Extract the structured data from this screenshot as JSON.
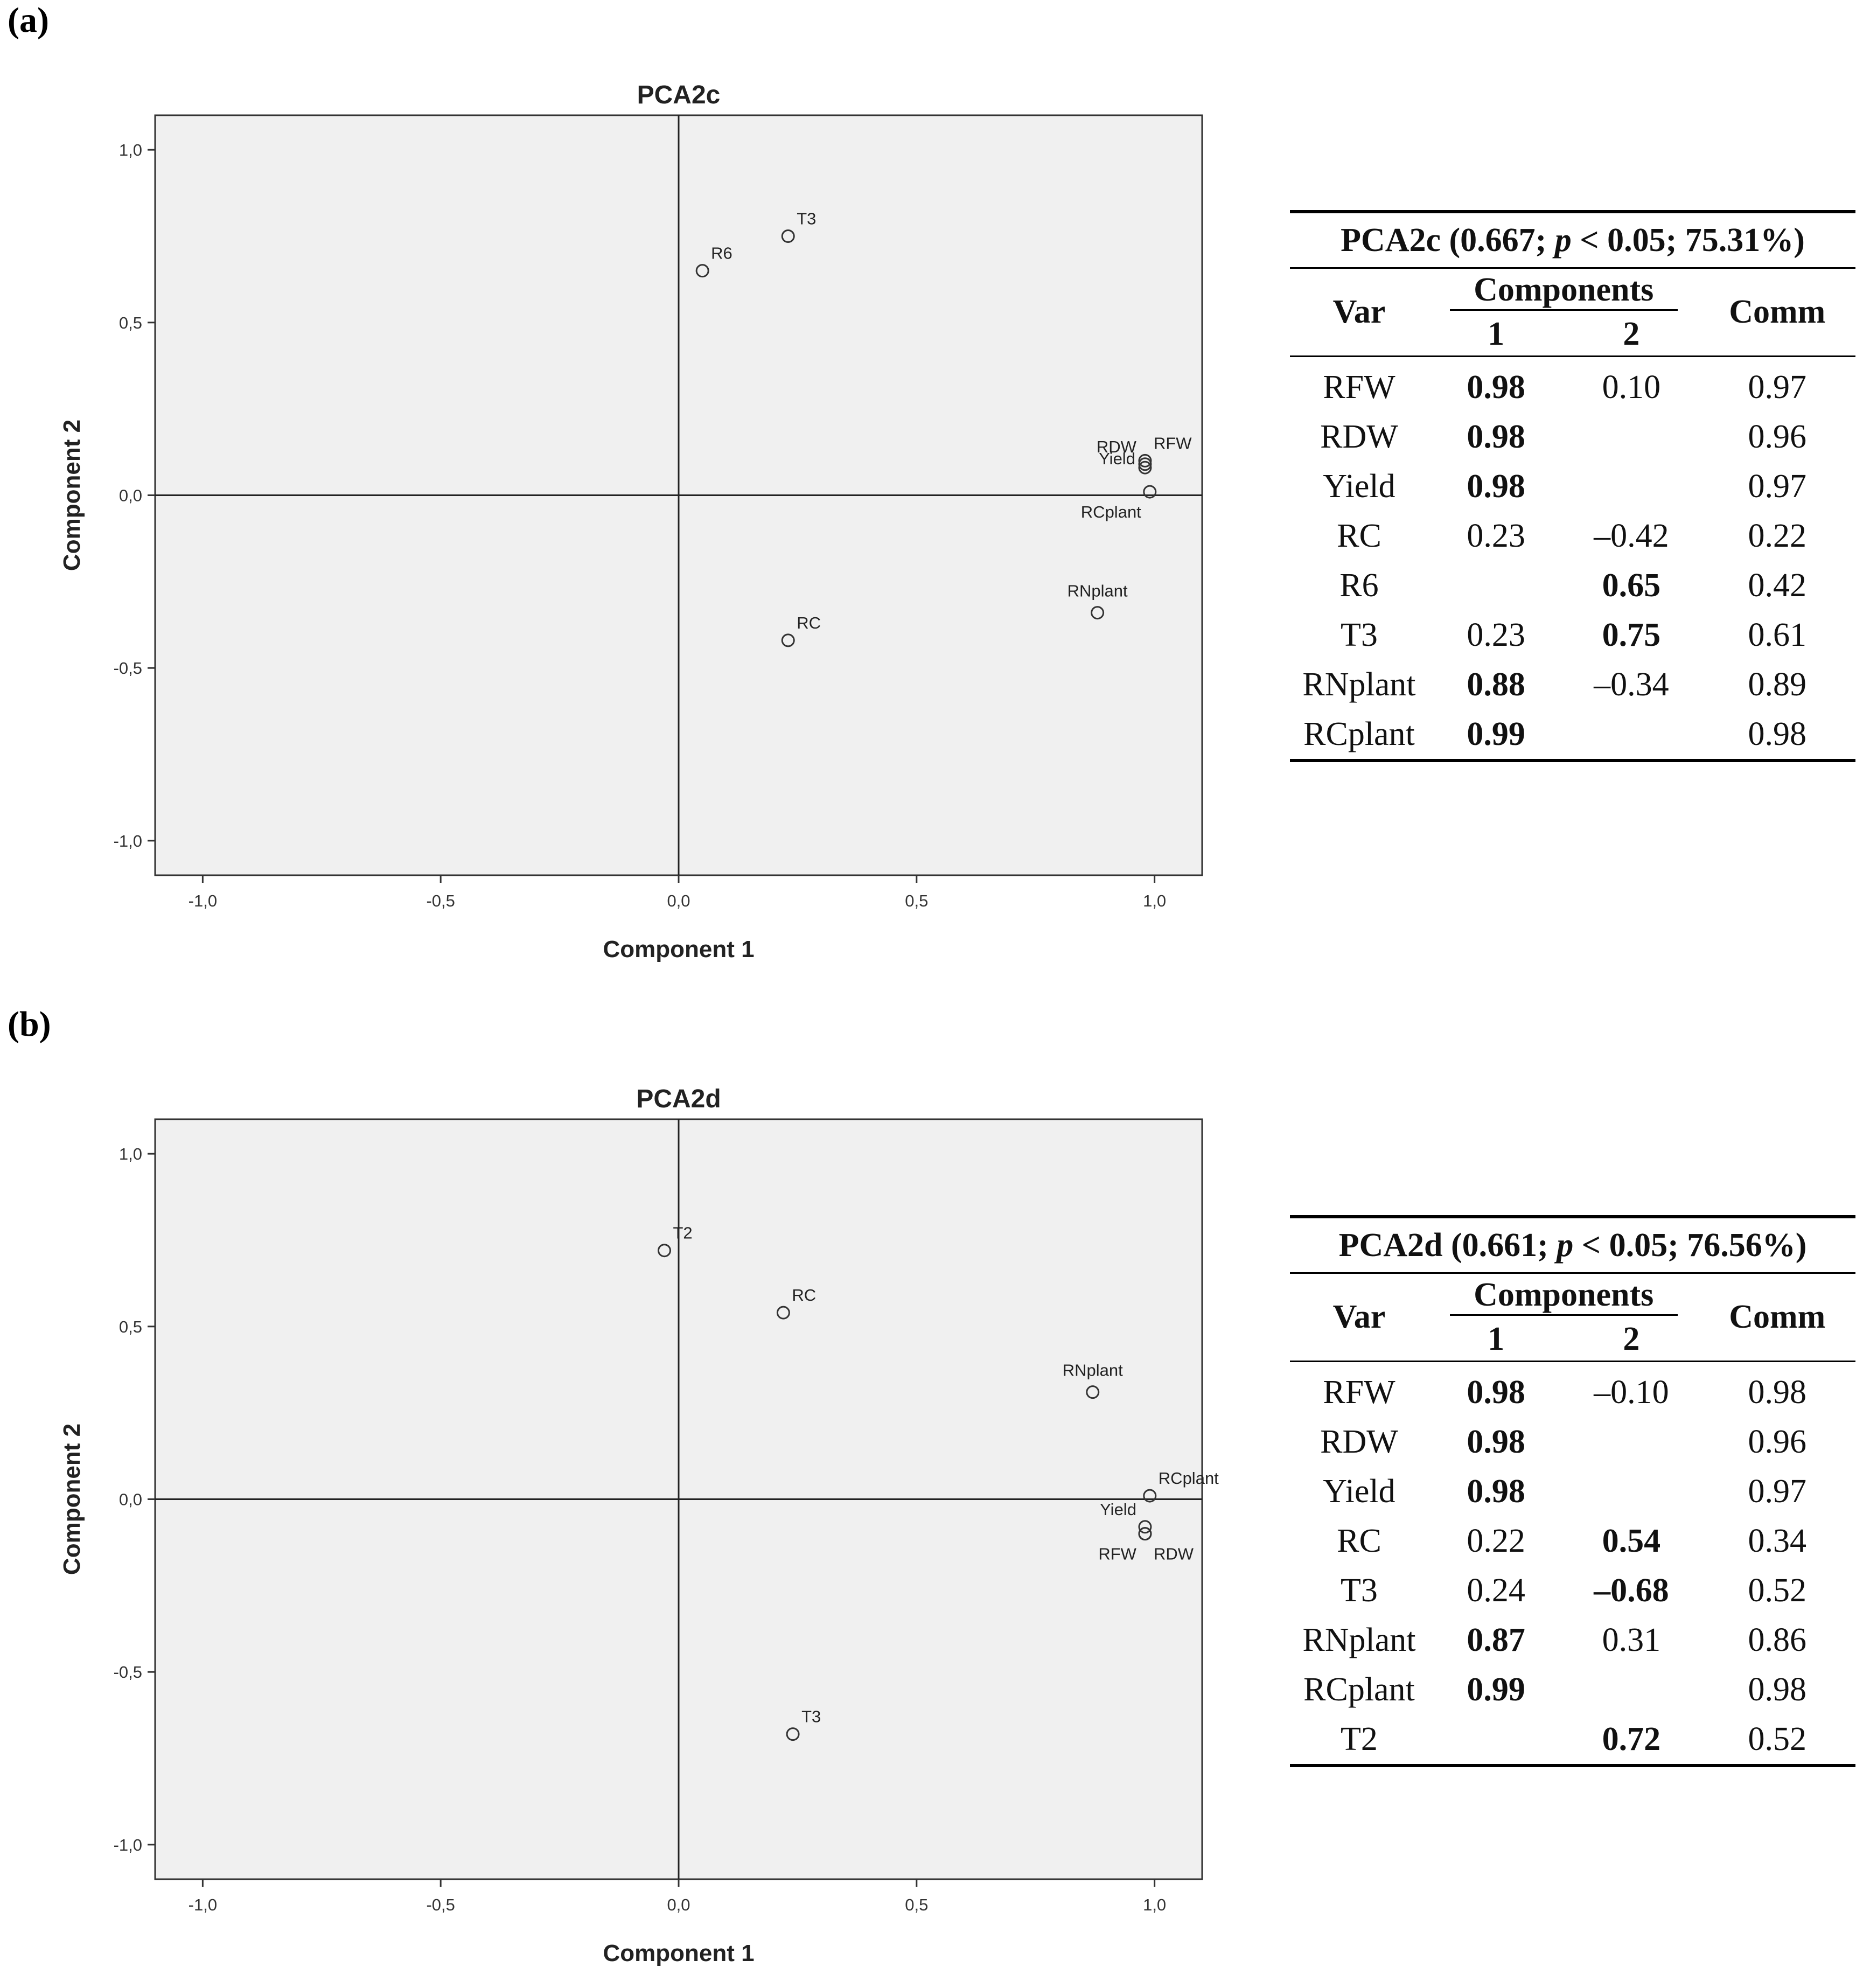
{
  "chart_data": [
    {
      "type": "scatter",
      "panel_label": "(a)",
      "title": "PCA2c",
      "xlabel": "Component 1",
      "ylabel": "Component 2",
      "xlim": [
        -1.1,
        1.1
      ],
      "ylim": [
        -1.1,
        1.1
      ],
      "xticks": [
        -1.0,
        -0.5,
        0.0,
        0.5,
        1.0
      ],
      "xtick_labels": [
        "-1,0",
        "-0,5",
        "0,0",
        "0,5",
        "1,0"
      ],
      "yticks": [
        1.0,
        0.5,
        0.0,
        -0.5,
        -1.0
      ],
      "ytick_labels": [
        "1,0",
        "0,5",
        "0,0",
        "-0,5",
        "-1,0"
      ],
      "points": [
        {
          "label": "T3",
          "x": 0.23,
          "y": 0.75,
          "lpos": "ne"
        },
        {
          "label": "R6",
          "x": 0.05,
          "y": 0.65,
          "lpos": "ne"
        },
        {
          "label": "RDW",
          "x": 0.98,
          "y": 0.09,
          "lpos": "nw"
        },
        {
          "label": "RFW",
          "x": 0.98,
          "y": 0.1,
          "lpos": "ne"
        },
        {
          "label": "Yield",
          "x": 0.98,
          "y": 0.08,
          "lpos": "w"
        },
        {
          "label": "RCplant",
          "x": 0.99,
          "y": 0.01,
          "lpos": "sw"
        },
        {
          "label": "RNplant",
          "x": 0.88,
          "y": -0.34,
          "lpos": "n"
        },
        {
          "label": "RC",
          "x": 0.23,
          "y": -0.42,
          "lpos": "ne"
        }
      ],
      "table": {
        "caption_pre": "PCA2c (0.667; ",
        "caption_p": "p",
        "caption_post": " < 0.05; 75.31%)",
        "var_header": "Var",
        "components_header": "Components",
        "comp1": "1",
        "comp2": "2",
        "comm_header": "Comm",
        "rows": [
          {
            "var": "RFW",
            "c1": "0.98",
            "c1b": true,
            "c2": "0.10",
            "c2b": false,
            "comm": "0.97"
          },
          {
            "var": "RDW",
            "c1": "0.98",
            "c1b": true,
            "c2": "",
            "c2b": false,
            "comm": "0.96"
          },
          {
            "var": "Yield",
            "c1": "0.98",
            "c1b": true,
            "c2": "",
            "c2b": false,
            "comm": "0.97"
          },
          {
            "var": "RC",
            "c1": "0.23",
            "c1b": false,
            "c2": "–0.42",
            "c2b": false,
            "comm": "0.22"
          },
          {
            "var": "R6",
            "c1": "",
            "c1b": false,
            "c2": "0.65",
            "c2b": true,
            "comm": "0.42"
          },
          {
            "var": "T3",
            "c1": "0.23",
            "c1b": false,
            "c2": "0.75",
            "c2b": true,
            "comm": "0.61"
          },
          {
            "var": "RNplant",
            "c1": "0.88",
            "c1b": true,
            "c2": "–0.34",
            "c2b": false,
            "comm": "0.89"
          },
          {
            "var": "RCplant",
            "c1": "0.99",
            "c1b": true,
            "c2": "",
            "c2b": false,
            "comm": "0.98"
          }
        ]
      }
    },
    {
      "type": "scatter",
      "panel_label": "(b)",
      "title": "PCA2d",
      "xlabel": "Component 1",
      "ylabel": "Component 2",
      "xlim": [
        -1.1,
        1.1
      ],
      "ylim": [
        -1.1,
        1.1
      ],
      "xticks": [
        -1.0,
        -0.5,
        0.0,
        0.5,
        1.0
      ],
      "xtick_labels": [
        "-1,0",
        "-0,5",
        "0,0",
        "0,5",
        "1,0"
      ],
      "yticks": [
        1.0,
        0.5,
        0.0,
        -0.5,
        -1.0
      ],
      "ytick_labels": [
        "1,0",
        "0,5",
        "0,0",
        "-0,5",
        "-1,0"
      ],
      "points": [
        {
          "label": "T2",
          "x": -0.03,
          "y": 0.72,
          "lpos": "ne"
        },
        {
          "label": "RC",
          "x": 0.22,
          "y": 0.54,
          "lpos": "ne"
        },
        {
          "label": "RNplant",
          "x": 0.87,
          "y": 0.31,
          "lpos": "n"
        },
        {
          "label": "RCplant",
          "x": 0.99,
          "y": 0.01,
          "lpos": "ne"
        },
        {
          "label": "Yield",
          "x": 0.98,
          "y": -0.08,
          "lpos": "nw"
        },
        {
          "label": "RFW",
          "x": 0.98,
          "y": -0.1,
          "lpos": "sw"
        },
        {
          "label": "RDW",
          "x": 0.98,
          "y": -0.1,
          "lpos": "se"
        },
        {
          "label": "T3",
          "x": 0.24,
          "y": -0.68,
          "lpos": "ne"
        }
      ],
      "table": {
        "caption_pre": "PCA2d (0.661; ",
        "caption_p": "p",
        "caption_post": " < 0.05; 76.56%)",
        "var_header": "Var",
        "components_header": "Components",
        "comp1": "1",
        "comp2": "2",
        "comm_header": "Comm",
        "rows": [
          {
            "var": "RFW",
            "c1": "0.98",
            "c1b": true,
            "c2": "–0.10",
            "c2b": false,
            "comm": "0.98"
          },
          {
            "var": "RDW",
            "c1": "0.98",
            "c1b": true,
            "c2": "",
            "c2b": false,
            "comm": "0.96"
          },
          {
            "var": "Yield",
            "c1": "0.98",
            "c1b": true,
            "c2": "",
            "c2b": false,
            "comm": "0.97"
          },
          {
            "var": "RC",
            "c1": "0.22",
            "c1b": false,
            "c2": "0.54",
            "c2b": true,
            "comm": "0.34"
          },
          {
            "var": "T3",
            "c1": "0.24",
            "c1b": false,
            "c2": "–0.68",
            "c2b": true,
            "comm": "0.52"
          },
          {
            "var": "RNplant",
            "c1": "0.87",
            "c1b": true,
            "c2": "0.31",
            "c2b": false,
            "comm": "0.86"
          },
          {
            "var": "RCplant",
            "c1": "0.99",
            "c1b": true,
            "c2": "",
            "c2b": false,
            "comm": "0.98"
          },
          {
            "var": "T2",
            "c1": "",
            "c1b": false,
            "c2": "0.72",
            "c2b": true,
            "comm": "0.52"
          }
        ]
      }
    }
  ]
}
